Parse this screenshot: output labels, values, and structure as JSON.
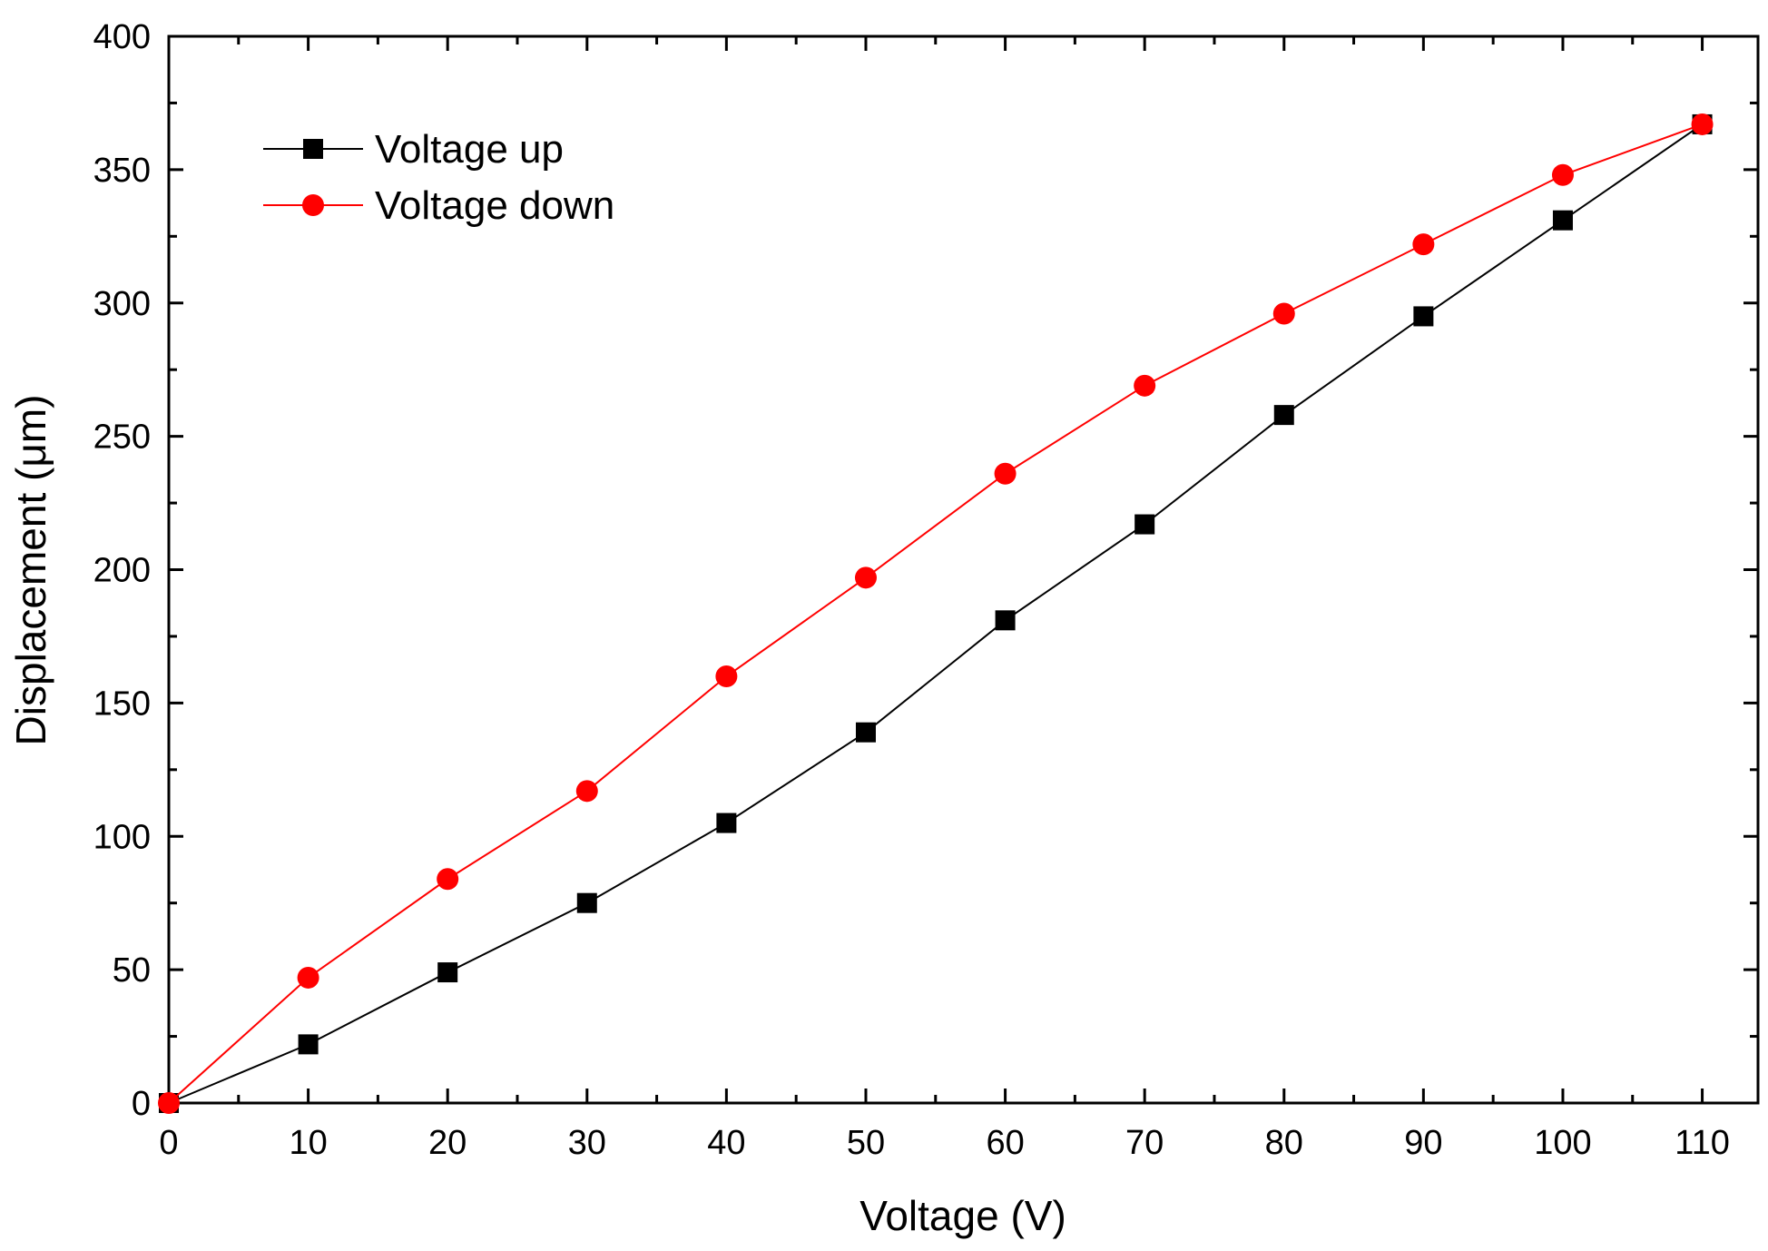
{
  "chart_data": {
    "type": "line",
    "title": "",
    "xlabel": "Voltage (V)",
    "ylabel": "Displacement (μm)",
    "xlim": [
      0,
      114
    ],
    "ylim": [
      0,
      400
    ],
    "xticks": [
      0,
      10,
      20,
      30,
      40,
      50,
      60,
      70,
      80,
      90,
      100,
      110
    ],
    "yticks": [
      0,
      50,
      100,
      150,
      200,
      250,
      300,
      350,
      400
    ],
    "grid": false,
    "legend_position": "top-left",
    "series": [
      {
        "name": "Voltage up",
        "color": "#000000",
        "marker": "square",
        "x": [
          0,
          10,
          20,
          30,
          40,
          50,
          60,
          70,
          80,
          90,
          100,
          110
        ],
        "y": [
          0,
          22,
          49,
          75,
          105,
          139,
          181,
          217,
          258,
          295,
          331,
          367
        ]
      },
      {
        "name": "Voltage down",
        "color": "#ff0000",
        "marker": "circle",
        "x": [
          0,
          10,
          20,
          30,
          40,
          50,
          60,
          70,
          80,
          90,
          100,
          110
        ],
        "y": [
          0,
          47,
          84,
          117,
          160,
          197,
          236,
          269,
          296,
          322,
          348,
          367
        ]
      }
    ]
  }
}
